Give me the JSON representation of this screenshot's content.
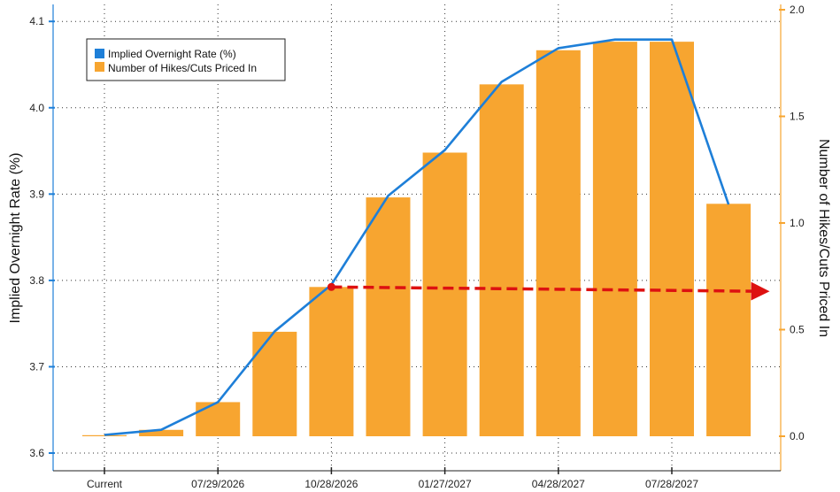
{
  "chart_data": {
    "type": "bar+line",
    "categories": [
      "Current",
      "",
      "07/29/2026",
      "",
      "10/28/2026",
      "",
      "01/27/2027",
      "",
      "04/28/2027",
      "",
      "07/28/2027",
      ""
    ],
    "series": [
      {
        "name": "Implied Overnight Rate (%)",
        "type": "line",
        "axis": "left",
        "color": "#1e7fd8",
        "values": [
          3.621,
          3.627,
          3.659,
          3.741,
          3.795,
          3.898,
          3.951,
          4.03,
          4.069,
          4.079,
          4.079,
          3.888
        ]
      },
      {
        "name": "Number of Hikes/Cuts Priced In",
        "type": "bar",
        "axis": "right",
        "color": "#f7a530",
        "values": [
          0.0,
          0.03,
          0.16,
          0.49,
          0.7,
          1.12,
          1.33,
          1.65,
          1.81,
          1.85,
          1.85,
          1.09
        ]
      }
    ],
    "ylabel": "Implied Overnight Rate (%)",
    "y2label": "Number of Hikes/Cuts Priced In",
    "ylim": [
      3.6,
      4.1
    ],
    "y2lim": [
      -0.1,
      2.0
    ],
    "yticks": [
      "3.6",
      "3.7",
      "3.8",
      "3.9",
      "4.0",
      "4.1"
    ],
    "y2ticks": [
      "0.0",
      "0.5",
      "1.0",
      "1.5",
      "2.0"
    ],
    "grid": true,
    "legend": "top-left",
    "annotation": {
      "type": "dashed-arrow",
      "color": "#dd1111",
      "from": {
        "category_index": 4,
        "value": 0.7
      },
      "to_value": 0.68
    }
  }
}
